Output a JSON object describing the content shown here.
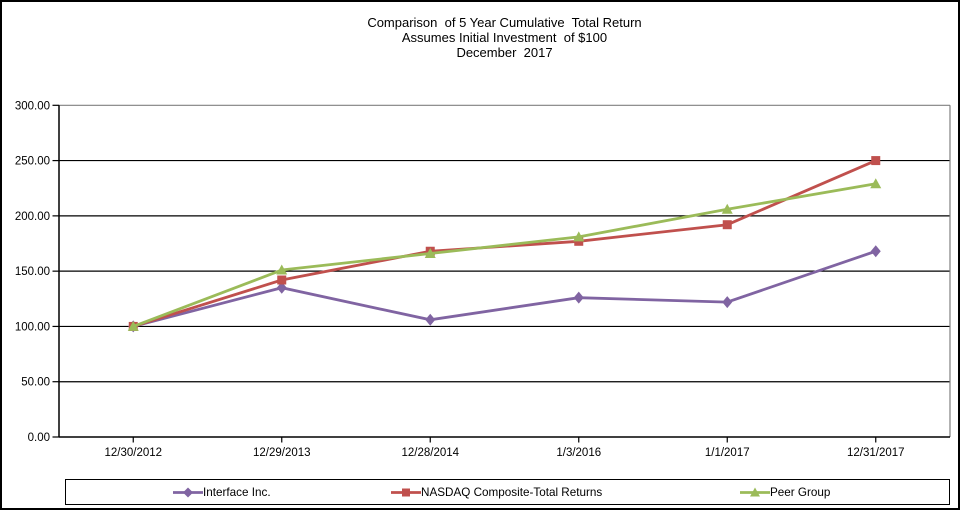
{
  "title": {
    "line1": "Comparison  of 5 Year Cumulative  Total Return",
    "line2": "Assumes Initial Investment  of $100",
    "line3": "December  2017"
  },
  "chart_data": {
    "type": "line",
    "categories": [
      "12/30/2012",
      "12/29/2013",
      "12/28/2014",
      "1/3/2016",
      "1/1/2017",
      "12/31/2017"
    ],
    "series": [
      {
        "name": "Interface Inc.",
        "marker": "diamond",
        "color": "#8064A2",
        "values": [
          100.0,
          135.0,
          106.0,
          126.0,
          122.0,
          168.0
        ]
      },
      {
        "name": "NASDAQ Composite-Total Returns",
        "marker": "square",
        "color": "#C0504D",
        "values": [
          100.0,
          142.0,
          168.0,
          177.0,
          192.0,
          250.0
        ]
      },
      {
        "name": "Peer Group",
        "marker": "triangle",
        "color": "#9BBB59",
        "values": [
          100.0,
          151.0,
          166.0,
          181.0,
          206.0,
          229.0
        ]
      }
    ],
    "y_ticks": [
      "300.00",
      "250.00",
      "200.00",
      "150.00",
      "100.00",
      "50.00",
      "0.00"
    ],
    "y_tick_values": [
      300,
      250,
      200,
      150,
      100,
      50,
      0
    ],
    "ylim": [
      0,
      300
    ],
    "grid": true,
    "legend_position": "bottom",
    "gridline_color": "#000000",
    "plot_border_color": "#808080",
    "axis_color": "#000000"
  }
}
